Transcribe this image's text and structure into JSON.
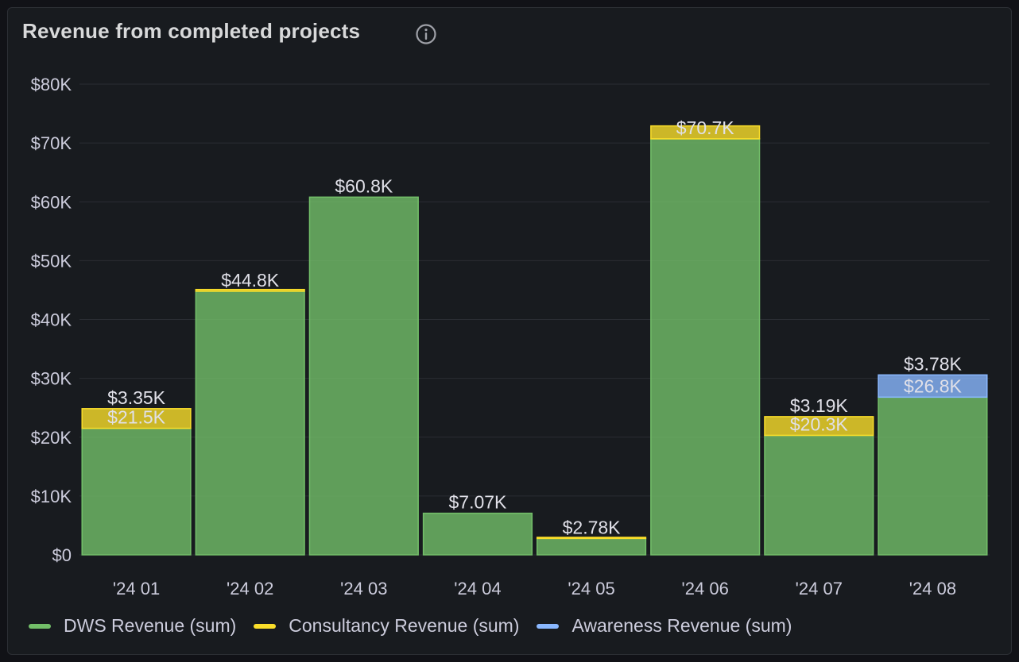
{
  "panel": {
    "title": "Revenue from completed projects",
    "info_icon": "info-circle-icon"
  },
  "colors": {
    "background": "#111217",
    "panel_bg": "#181b1f",
    "grid": "#2a2d33",
    "text": "#ccccdc",
    "dws": "#73bf69",
    "consultancy": "#fade2a",
    "awareness": "#8ab8ff"
  },
  "legend": [
    {
      "label": "DWS Revenue (sum)",
      "color": "#73bf69"
    },
    {
      "label": "Consultancy Revenue (sum)",
      "color": "#fade2a"
    },
    {
      "label": "Awareness Revenue (sum)",
      "color": "#8ab8ff"
    }
  ],
  "chart_data": {
    "type": "bar",
    "stacked": true,
    "categories": [
      "'24 01",
      "'24 02",
      "'24 03",
      "'24 04",
      "'24 05",
      "'24 06",
      "'24 07",
      "'24 08"
    ],
    "ylim": [
      0,
      80000
    ],
    "yticks": [
      {
        "value": 0,
        "label": "$0"
      },
      {
        "value": 10000,
        "label": "$10K"
      },
      {
        "value": 20000,
        "label": "$20K"
      },
      {
        "value": 30000,
        "label": "$30K"
      },
      {
        "value": 40000,
        "label": "$40K"
      },
      {
        "value": 50000,
        "label": "$50K"
      },
      {
        "value": 60000,
        "label": "$60K"
      },
      {
        "value": 70000,
        "label": "$70K"
      },
      {
        "value": 80000,
        "label": "$80K"
      }
    ],
    "grid": true,
    "legend_position": "bottom-left",
    "series": [
      {
        "name": "DWS Revenue (sum)",
        "color": "#73bf69",
        "values": [
          21500,
          44800,
          60800,
          7070,
          2780,
          70700,
          20300,
          26800
        ],
        "labels": [
          "$21.5K",
          "$44.8K",
          "$60.8K",
          "$7.07K",
          "$2.78K",
          "$70.7K",
          "$20.3K",
          "$26.8K"
        ]
      },
      {
        "name": "Consultancy Revenue (sum)",
        "color": "#fade2a",
        "values": [
          3350,
          300,
          0,
          0,
          200,
          2200,
          3190,
          0
        ],
        "labels": [
          "$3.35K",
          "",
          "",
          "",
          "",
          "",
          "$3.19K",
          ""
        ]
      },
      {
        "name": "Awareness Revenue (sum)",
        "color": "#8ab8ff",
        "values": [
          0,
          0,
          0,
          0,
          0,
          0,
          0,
          3780
        ],
        "labels": [
          "",
          "",
          "",
          "",
          "",
          "",
          "",
          "$3.78K"
        ]
      }
    ]
  }
}
